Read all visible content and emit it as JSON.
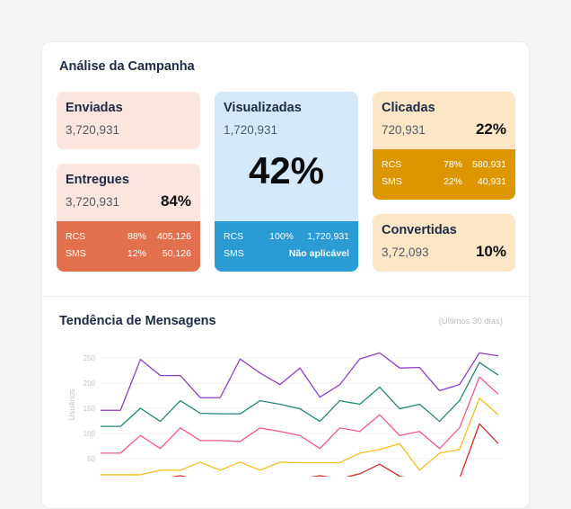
{
  "campaign": {
    "title": "Análise da Campanha",
    "enviadas": {
      "label": "Enviadas",
      "value": "3,720,931"
    },
    "entregues": {
      "label": "Entregues",
      "value": "3,720,931",
      "percent": "84%",
      "rows": [
        {
          "channel": "RCS",
          "percent": "88%",
          "value": "405,126"
        },
        {
          "channel": "SMS",
          "percent": "12%",
          "value": "50,126"
        }
      ],
      "color": "#e3704d"
    },
    "visualizadas": {
      "label": "Visualizadas",
      "value": "1,720,931",
      "percent": "42%",
      "rows": [
        {
          "channel": "RCS",
          "percent": "100%",
          "value": "1,720,931"
        },
        {
          "channel": "SMS",
          "note": "Não aplicável"
        }
      ],
      "color": "#2b9bd3"
    },
    "clicadas": {
      "label": "Clicadas",
      "value": "720,931",
      "percent": "22%",
      "rows": [
        {
          "channel": "RCS",
          "percent": "78%",
          "value": "580,931"
        },
        {
          "channel": "SMS",
          "percent": "22%",
          "value": "40,931"
        }
      ],
      "color": "#dc9700"
    },
    "convertidas": {
      "label": "Convertidas",
      "value": "3,72,093",
      "percent": "10%"
    }
  },
  "trend": {
    "title": "Tendência de Mensagens",
    "range": "(Últimos 30 dias)"
  },
  "chart_data": {
    "type": "line",
    "ylabel": "Usuários",
    "yticks": [
      50,
      100,
      150,
      200,
      250
    ],
    "ylim": [
      0,
      260
    ],
    "grid": true,
    "series": [
      {
        "color": "#8a3fc4",
        "values": [
          146,
          146,
          247,
          215,
          215,
          171,
          171,
          248,
          220,
          197,
          230,
          172,
          197,
          248,
          260,
          230,
          231,
          185,
          197,
          260,
          254
        ]
      },
      {
        "color": "#23877a",
        "values": [
          114,
          114,
          150,
          124,
          165,
          140,
          139,
          139,
          165,
          158,
          149,
          124,
          165,
          158,
          192,
          149,
          158,
          124,
          165,
          241,
          216
        ]
      },
      {
        "color": "#f2558f",
        "values": [
          61,
          61,
          96,
          70,
          111,
          86,
          86,
          84,
          111,
          104,
          96,
          70,
          111,
          104,
          137,
          96,
          104,
          70,
          111,
          212,
          178
        ]
      },
      {
        "color": "#f6bd1f",
        "values": [
          18,
          18,
          18,
          27,
          27,
          43,
          27,
          43,
          27,
          43,
          42,
          42,
          42,
          61,
          68,
          80,
          27,
          61,
          68,
          170,
          137
        ]
      },
      {
        "color": "#d12b2b",
        "values": [
          5,
          5,
          5,
          10,
          16,
          8,
          5,
          8,
          5,
          8,
          10,
          16,
          10,
          20,
          39,
          15,
          8,
          5,
          10,
          119,
          80
        ]
      }
    ]
  }
}
